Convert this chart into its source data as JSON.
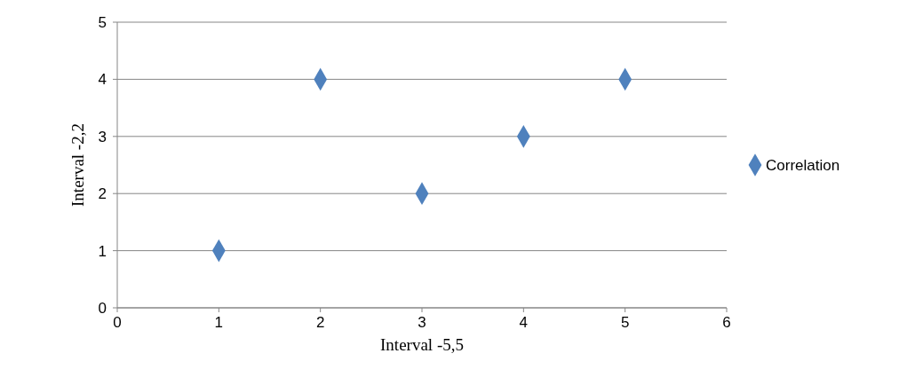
{
  "chart_data": {
    "type": "scatter",
    "xlabel": "Interval -5,5",
    "ylabel": "Interval -2,2",
    "x": [
      1,
      2,
      3,
      4,
      5
    ],
    "series": [
      {
        "name": "Correlation",
        "color": "#4f81bd",
        "values": [
          1,
          4,
          2,
          3,
          4
        ]
      }
    ],
    "xlim": [
      0,
      6
    ],
    "xticks": [
      0,
      1,
      2,
      3,
      4,
      5,
      6
    ],
    "ylim": [
      0,
      5
    ],
    "yticks": [
      0,
      1,
      2,
      3,
      4,
      5
    ],
    "grid": "y",
    "legend": "right",
    "marker": "diamond"
  }
}
